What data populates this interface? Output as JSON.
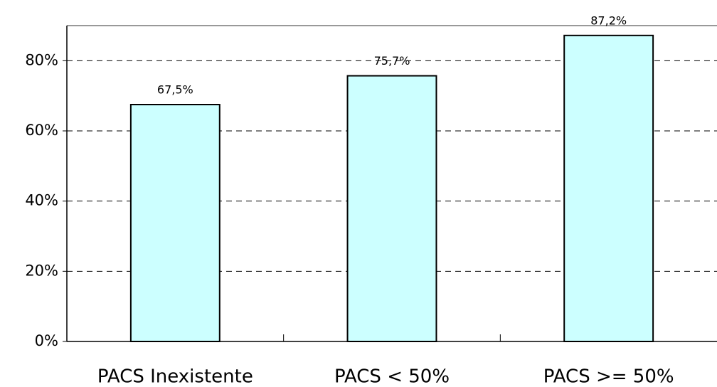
{
  "chart_data": {
    "type": "bar",
    "categories": [
      "PACS Inexistente",
      "PACS < 50%",
      "PACS >= 50%"
    ],
    "values": [
      67.5,
      75.7,
      87.2
    ],
    "value_labels": [
      "67,5%",
      "75,7%",
      "87,2%"
    ],
    "color": "#ccffff",
    "ylim": [
      0,
      90
    ],
    "yticks": [
      {
        "value": 0,
        "label": "0%"
      },
      {
        "value": 20,
        "label": "20%"
      },
      {
        "value": 40,
        "label": "40%"
      },
      {
        "value": 60,
        "label": "60%"
      },
      {
        "value": 80,
        "label": "80%"
      }
    ],
    "grid": true
  }
}
